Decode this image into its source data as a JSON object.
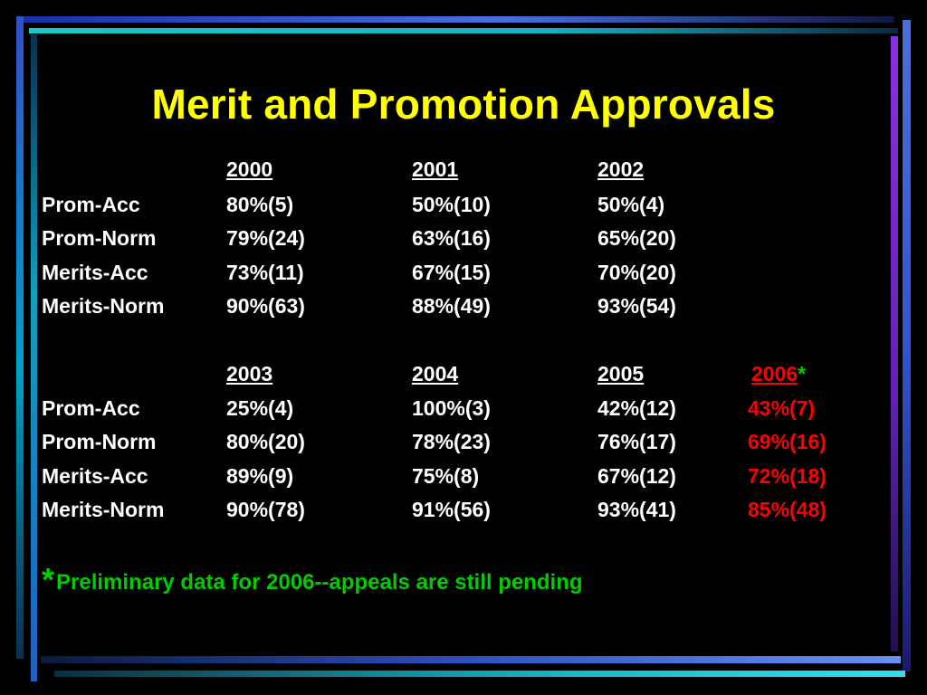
{
  "title": "Merit and Promotion Approvals",
  "colors": {
    "title": "#ffff00",
    "text": "#ffffff",
    "highlight": "#ff0000",
    "note": "#00cc00"
  },
  "table1": {
    "years": [
      "2000",
      "2001",
      "2002"
    ],
    "rows": [
      {
        "label": "Prom-Acc",
        "values": [
          "80%(5)",
          "50%(10)",
          "50%(4)"
        ]
      },
      {
        "label": "Prom-Norm",
        "values": [
          "79%(24)",
          "63%(16)",
          "65%(20)"
        ]
      },
      {
        "label": "Merits-Acc",
        "values": [
          "73%(11)",
          "67%(15)",
          "70%(20)"
        ]
      },
      {
        "label": "Merits-Norm",
        "values": [
          "90%(63)",
          "88%(49)",
          "93%(54)"
        ]
      }
    ]
  },
  "table2": {
    "years": [
      "2003",
      "2004",
      "2005",
      "2006"
    ],
    "year_marker": "*",
    "rows": [
      {
        "label": "Prom-Acc",
        "values": [
          "25%(4)",
          "100%(3)",
          "42%(12)",
          "43%(7)"
        ]
      },
      {
        "label": "Prom-Norm",
        "values": [
          "80%(20)",
          "78%(23)",
          "76%(17)",
          "69%(16)"
        ]
      },
      {
        "label": "Merits-Acc",
        "values": [
          "89%(9)",
          "75%(8)",
          "67%(12)",
          "72%(18)"
        ]
      },
      {
        "label": "Merits-Norm",
        "values": [
          "90%(78)",
          "91%(56)",
          "93%(41)",
          "85%(48)"
        ]
      }
    ]
  },
  "footnote": {
    "marker": "*",
    "text": "Preliminary data for 2006--appeals are still pending"
  }
}
